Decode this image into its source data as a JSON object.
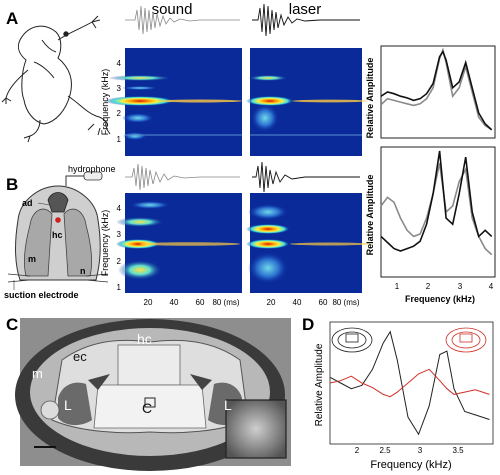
{
  "panels": {
    "A": "A",
    "B": "B",
    "C": "C",
    "D": "D"
  },
  "headers": {
    "sound": "sound",
    "laser": "laser"
  },
  "spectrogram": {
    "ylabel": "Frequency (kHz)",
    "yticks": [
      "1",
      "2",
      "3",
      "4"
    ],
    "xticks": [
      "20",
      "40",
      "60",
      "80 (ms)"
    ],
    "xticks_b": [
      "20",
      "40",
      "60",
      "80 (ms)"
    ]
  },
  "spectrum": {
    "ylabel": "Relative Amplitude",
    "xlabel": "Frequency (kHz)",
    "xticks": [
      "1",
      "2",
      "3",
      "4"
    ]
  },
  "panel_b_labels": {
    "hydrophone": "hydrophone",
    "ad": "ad",
    "hc": "hc",
    "m": "m",
    "n": "n",
    "suction_electrode": "suction electrode"
  },
  "panel_c_labels": {
    "hc": "hc",
    "ec": "ec",
    "m": "m",
    "L_left": "L",
    "C": "C",
    "L_right": "L"
  },
  "panel_d": {
    "ylabel": "Relative Amplitude",
    "xlabel": "Frequency (kHz)",
    "xticks": [
      "2",
      "2.5",
      "3",
      "3.5"
    ]
  },
  "colors": {
    "sound_trace": "#8a8a8a",
    "laser_trace": "#111111",
    "spec_bg": "#0a2a9a",
    "panel_d_red": "#d03028",
    "panel_d_black": "#222222"
  },
  "chart_data": [
    {
      "type": "line",
      "panel": "A",
      "x": [
        0.6,
        0.8,
        1.0,
        1.2,
        1.4,
        1.6,
        1.8,
        2.0,
        2.2,
        2.4,
        2.5,
        2.6,
        2.8,
        3.0,
        3.2,
        3.4,
        3.6,
        3.8,
        4.0
      ],
      "series": [
        {
          "values": [
            0.35,
            0.42,
            0.4,
            0.38,
            0.36,
            0.34,
            0.36,
            0.42,
            0.55,
            0.9,
            1.0,
            0.85,
            0.45,
            0.55,
            0.8,
            0.5,
            0.2,
            0.1,
            0.05
          ]
        },
        {
          "values": [
            0.45,
            0.5,
            0.48,
            0.45,
            0.43,
            0.4,
            0.42,
            0.48,
            0.6,
            0.92,
            0.98,
            0.88,
            0.55,
            0.62,
            0.85,
            0.55,
            0.25,
            0.12,
            0.05
          ]
        }
      ],
      "xlim": [
        0.6,
        4.1
      ]
    },
    {
      "type": "line",
      "panel": "B",
      "x": [
        0.6,
        0.8,
        1.0,
        1.2,
        1.4,
        1.6,
        1.8,
        2.0,
        2.2,
        2.4,
        2.6,
        2.8,
        3.0,
        3.2,
        3.4,
        3.6,
        3.8,
        4.0
      ],
      "series": [
        {
          "values": [
            0.55,
            0.62,
            0.58,
            0.45,
            0.35,
            0.3,
            0.32,
            0.45,
            0.65,
            0.9,
            0.5,
            0.55,
            0.75,
            0.85,
            0.45,
            0.3,
            0.2,
            0.15
          ]
        },
        {
          "values": [
            0.3,
            0.25,
            0.2,
            0.18,
            0.2,
            0.22,
            0.26,
            0.4,
            0.65,
            1.0,
            0.45,
            0.4,
            0.65,
            0.95,
            0.5,
            0.3,
            0.35,
            0.3
          ]
        }
      ],
      "xlim": [
        0.6,
        4.1
      ]
    },
    {
      "type": "line",
      "panel": "D",
      "x": [
        1.65,
        1.8,
        1.95,
        2.1,
        2.25,
        2.4,
        2.5,
        2.6,
        2.75,
        2.9,
        3.05,
        3.2,
        3.3,
        3.4,
        3.55,
        3.7,
        3.9
      ],
      "series": [
        {
          "values": [
            0.55,
            0.5,
            0.45,
            0.48,
            0.62,
            0.85,
            0.95,
            0.7,
            0.2,
            0.05,
            0.3,
            0.75,
            0.78,
            0.45,
            0.25,
            0.22,
            0.18
          ]
        },
        {
          "values": [
            0.5,
            0.52,
            0.56,
            0.5,
            0.46,
            0.4,
            0.38,
            0.42,
            0.5,
            0.58,
            0.62,
            0.52,
            0.45,
            0.4,
            0.42,
            0.44,
            0.4
          ]
        }
      ],
      "xlim": [
        1.65,
        3.95
      ]
    }
  ]
}
